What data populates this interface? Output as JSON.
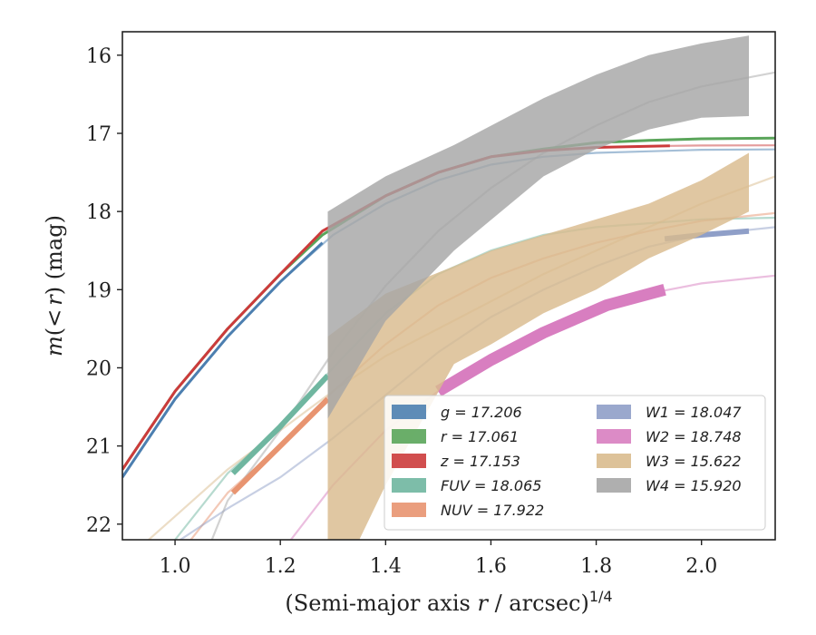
{
  "chart_data": {
    "type": "line",
    "xlabel": "(Semi-major axis r / arcsec)^{1/4}",
    "xlabel_parts": [
      "(Semi-major axis ",
      "r",
      " / arcsec)",
      "1/4"
    ],
    "ylabel": "m(<r) (mag)",
    "ylabel_parts": [
      "m",
      "(",
      "<",
      "r",
      ") (mag)"
    ],
    "xlim": [
      0.9,
      2.14
    ],
    "ylim": [
      22.2,
      15.7
    ],
    "y_inverted": true,
    "xticks": [
      1.0,
      1.2,
      1.4,
      1.6,
      1.8,
      2.0
    ],
    "xtick_labels": [
      "1.0",
      "1.2",
      "1.4",
      "1.6",
      "1.8",
      "2.0"
    ],
    "yticks": [
      16,
      17,
      18,
      19,
      20,
      21,
      22
    ],
    "ytick_labels": [
      "16",
      "17",
      "18",
      "19",
      "20",
      "21",
      "22"
    ],
    "grid": false,
    "legend_position": "lower-right",
    "series": [
      {
        "name": "g",
        "legend_label": "g = 17.206",
        "color": "#4c7fb0",
        "band_width": 2,
        "data_x": [
          0.9,
          1.0,
          1.1,
          1.2,
          1.28
        ],
        "data_y": [
          21.4,
          20.4,
          19.6,
          18.9,
          18.4
        ],
        "model_x": [
          0.9,
          1.0,
          1.1,
          1.2,
          1.3,
          1.4,
          1.5,
          1.6,
          1.7,
          1.8,
          1.9,
          2.0,
          2.14
        ],
        "model_y": [
          21.4,
          20.4,
          19.6,
          18.9,
          18.3,
          17.9,
          17.6,
          17.4,
          17.3,
          17.25,
          17.23,
          17.21,
          17.206
        ]
      },
      {
        "name": "r",
        "legend_label": "r = 17.061",
        "color": "#5aa55a",
        "band_width": 2,
        "data_x": [
          0.9,
          1.0,
          1.1,
          1.2,
          1.28,
          1.4,
          1.5,
          1.6,
          1.7,
          1.8,
          1.9,
          2.0,
          2.14
        ],
        "data_y": [
          21.3,
          20.3,
          19.5,
          18.8,
          18.3,
          17.8,
          17.5,
          17.3,
          17.2,
          17.12,
          17.09,
          17.07,
          17.061
        ],
        "model_x": [
          1.9,
          2.0,
          2.14
        ],
        "model_y": [
          17.09,
          17.07,
          17.061
        ]
      },
      {
        "name": "z",
        "legend_label": "z = 17.153",
        "color": "#cc3b3b",
        "band_width": 2,
        "data_x": [
          0.9,
          1.0,
          1.1,
          1.2,
          1.28,
          1.4,
          1.5,
          1.6,
          1.7,
          1.8,
          1.94
        ],
        "data_y": [
          21.3,
          20.3,
          19.5,
          18.8,
          18.25,
          17.8,
          17.5,
          17.3,
          17.22,
          17.18,
          17.16
        ],
        "model_x": [
          1.94,
          2.0,
          2.14
        ],
        "model_y": [
          17.16,
          17.155,
          17.153
        ]
      },
      {
        "name": "FUV",
        "legend_label": "FUV = 18.065",
        "color": "#6fb6a0",
        "band_width": 5,
        "data_x": [
          1.11,
          1.2,
          1.29
        ],
        "data_y": [
          21.35,
          20.75,
          20.1
        ],
        "model_x": [
          1.0,
          1.1,
          1.2,
          1.3,
          1.4,
          1.5,
          1.6,
          1.7,
          1.8,
          1.9,
          2.0,
          2.14
        ],
        "model_y": [
          22.2,
          21.35,
          20.75,
          20.0,
          19.3,
          18.8,
          18.5,
          18.3,
          18.2,
          18.15,
          18.1,
          18.08
        ]
      },
      {
        "name": "NUV",
        "legend_label": "NUV = 17.922",
        "color": "#e89470",
        "band_width": 5,
        "data_x": [
          1.11,
          1.2,
          1.29
        ],
        "data_y": [
          21.6,
          21.0,
          20.4
        ],
        "model_x": [
          1.03,
          1.1,
          1.2,
          1.3,
          1.4,
          1.5,
          1.6,
          1.7,
          1.8,
          1.9,
          2.0,
          2.14
        ],
        "model_y": [
          22.2,
          21.6,
          21.0,
          20.3,
          19.7,
          19.2,
          18.85,
          18.6,
          18.4,
          18.25,
          18.12,
          18.02
        ]
      },
      {
        "name": "W1",
        "legend_label": "W1 = 18.047",
        "color": "#8f9fc8",
        "band_width": 5,
        "data_x": [
          1.93,
          2.0,
          2.09
        ],
        "data_y": [
          18.35,
          18.3,
          18.25
        ],
        "model_x": [
          1.01,
          1.1,
          1.2,
          1.3,
          1.4,
          1.5,
          1.6,
          1.7,
          1.8,
          1.9,
          2.0,
          2.14
        ],
        "model_y": [
          22.2,
          21.8,
          21.4,
          20.9,
          20.35,
          19.8,
          19.35,
          19.0,
          18.7,
          18.45,
          18.3,
          18.2
        ]
      },
      {
        "name": "W2",
        "legend_label": "W2 = 18.748",
        "color": "#d87ec0",
        "band_width": 12,
        "data_x": [
          1.5,
          1.6,
          1.7,
          1.82,
          1.93
        ],
        "data_y": [
          20.3,
          19.9,
          19.55,
          19.2,
          19.0
        ],
        "model_x": [
          1.22,
          1.3,
          1.4,
          1.5,
          1.6,
          1.7,
          1.8,
          1.9,
          2.0,
          2.14
        ],
        "model_y": [
          22.2,
          21.5,
          20.8,
          20.3,
          19.85,
          19.5,
          19.25,
          19.05,
          18.92,
          18.82
        ]
      },
      {
        "name": "W3",
        "legend_label": "W3 = 15.622",
        "color": "#d9bb8e",
        "band_width": 0,
        "band_x": [
          1.29,
          1.35,
          1.4,
          1.53,
          1.6,
          1.7,
          1.8,
          1.9,
          2.0,
          2.09
        ],
        "band_upper": [
          19.6,
          19.3,
          19.05,
          18.7,
          18.5,
          18.3,
          18.1,
          17.9,
          17.6,
          17.25
        ],
        "band_lower": [
          22.2,
          22.2,
          21.5,
          19.95,
          19.7,
          19.3,
          19.0,
          18.6,
          18.3,
          18.0
        ],
        "model_x": [
          0.95,
          1.0,
          1.1,
          1.2,
          1.3,
          1.4,
          1.5,
          1.6,
          1.7,
          1.8,
          1.9,
          2.0,
          2.14
        ],
        "model_y": [
          22.2,
          21.9,
          21.3,
          20.8,
          20.3,
          19.85,
          19.5,
          19.15,
          18.8,
          18.5,
          18.2,
          17.9,
          17.55
        ]
      },
      {
        "name": "W4",
        "legend_label": "W4 = 15.920",
        "color": "#a6a6a6",
        "band_width": 0,
        "band_x": [
          1.29,
          1.4,
          1.53,
          1.7,
          1.8,
          1.9,
          2.0,
          2.09
        ],
        "band_upper": [
          18.0,
          17.55,
          17.15,
          16.55,
          16.25,
          16.0,
          15.85,
          15.75
        ],
        "band_lower": [
          20.65,
          19.4,
          18.5,
          17.55,
          17.2,
          16.95,
          16.8,
          16.78
        ],
        "model_x": [
          1.07,
          1.1,
          1.2,
          1.3,
          1.4,
          1.5,
          1.6,
          1.7,
          1.8,
          1.9,
          2.0,
          2.14
        ],
        "model_y": [
          22.2,
          21.7,
          20.8,
          19.8,
          18.95,
          18.25,
          17.7,
          17.25,
          16.9,
          16.6,
          16.4,
          16.22
        ]
      }
    ]
  }
}
